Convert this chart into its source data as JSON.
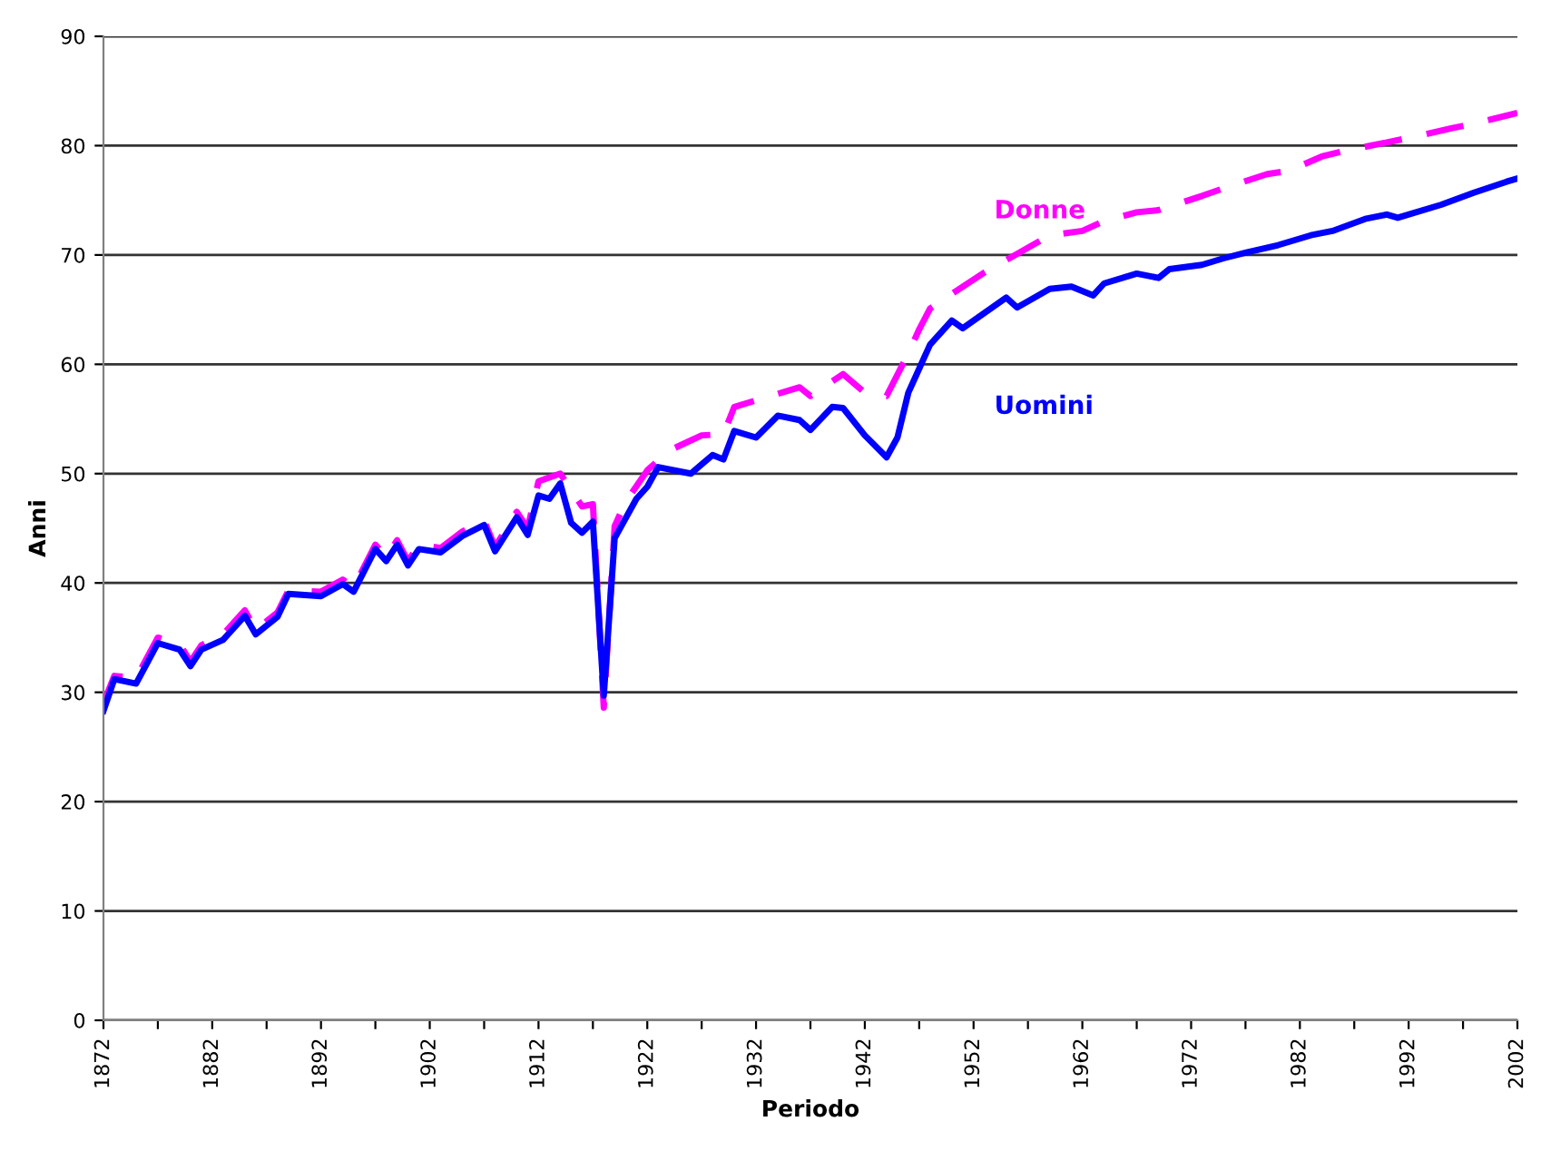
{
  "chart_data": {
    "type": "line",
    "xlabel": "Periodo",
    "ylabel": "Anni",
    "xlim": [
      1872,
      2002
    ],
    "ylim": [
      0,
      90
    ],
    "xticks": [
      1872,
      {
        "value": 1877,
        "label": null
      },
      1882,
      {
        "value": 1887,
        "label": null
      },
      1892,
      {
        "value": 1897,
        "label": null
      },
      1902,
      {
        "value": 1907,
        "label": null
      },
      1912,
      {
        "value": 1917,
        "label": null
      },
      1922,
      {
        "value": 1927,
        "label": null
      },
      1932,
      {
        "value": 1937,
        "label": null
      },
      1942,
      {
        "value": 1947,
        "label": null
      },
      1952,
      {
        "value": 1957,
        "label": null
      },
      1962,
      {
        "value": 1967,
        "label": null
      },
      1972,
      {
        "value": 1977,
        "label": null
      },
      1982,
      {
        "value": 1987,
        "label": null
      },
      1992,
      {
        "value": 1997,
        "label": null
      },
      2002
    ],
    "yticks": [
      0,
      10,
      20,
      30,
      40,
      50,
      60,
      70,
      80,
      90
    ],
    "grid": "y",
    "legend": false,
    "series": [
      {
        "name": "Donne",
        "color": "#ff00ff",
        "line_style": "dashed",
        "x": [
          1872,
          1873,
          1875,
          1877,
          1879,
          1880,
          1881,
          1883,
          1885,
          1886,
          1888,
          1889,
          1892,
          1894,
          1895,
          1897,
          1898,
          1899,
          1900,
          1901,
          1903,
          1905,
          1907,
          1908,
          1910,
          1911,
          1912,
          1914,
          1916,
          1917,
          1918,
          1919,
          1920,
          1922,
          1924,
          1927,
          1929,
          1930,
          1932,
          1936,
          1937,
          1940,
          1942,
          1944,
          1946,
          1947,
          1948,
          1951,
          1953,
          1956,
          1959,
          1962,
          1964,
          1967,
          1969,
          1973,
          1975,
          1979,
          1981,
          1984,
          1986,
          1990,
          1992,
          1996,
          1998,
          2002
        ],
        "values": [
          29.0,
          31.5,
          31.3,
          35.0,
          34.4,
          32.8,
          34.3,
          35.3,
          37.5,
          35.7,
          37.3,
          39.3,
          39.2,
          40.3,
          39.6,
          43.5,
          42.4,
          43.9,
          42.0,
          43.5,
          43.2,
          44.7,
          45.7,
          43.3,
          46.5,
          45.0,
          49.3,
          50.0,
          47.0,
          47.2,
          28.6,
          45.2,
          47.4,
          50.3,
          52.1,
          53.5,
          53.6,
          56.1,
          56.7,
          57.9,
          57.1,
          59.1,
          57.4,
          57.1,
          61.0,
          63.2,
          65.1,
          67.1,
          68.4,
          70.1,
          71.8,
          72.2,
          73.1,
          73.9,
          74.1,
          75.4,
          76.1,
          77.4,
          77.7,
          79.0,
          79.5,
          80.3,
          80.7,
          81.6,
          82.0,
          83.0
        ]
      },
      {
        "name": "Uomini",
        "color": "#0000ff",
        "line_style": "solid",
        "x": [
          1872,
          1873,
          1875,
          1877,
          1879,
          1880,
          1881,
          1883,
          1885,
          1886,
          1888,
          1889,
          1892,
          1894,
          1895,
          1897,
          1898,
          1899,
          1900,
          1901,
          1903,
          1905,
          1907,
          1908,
          1910,
          1911,
          1912,
          1913,
          1914,
          1915,
          1916,
          1917,
          1918,
          1919,
          1921,
          1922,
          1923,
          1926,
          1928,
          1929,
          1930,
          1932,
          1934,
          1936,
          1937,
          1939,
          1940,
          1942,
          1944,
          1945,
          1946,
          1948,
          1950,
          1951,
          1955,
          1956,
          1959,
          1961,
          1963,
          1964,
          1967,
          1969,
          1970,
          1973,
          1975,
          1977,
          1980,
          1983,
          1985,
          1988,
          1990,
          1991,
          1995,
          1998,
          2001,
          2002
        ],
        "values": [
          28.3,
          31.2,
          30.8,
          34.5,
          33.9,
          32.4,
          33.9,
          34.8,
          37.0,
          35.3,
          36.9,
          39.0,
          38.8,
          39.9,
          39.2,
          43.1,
          42.0,
          43.5,
          41.6,
          43.1,
          42.8,
          44.3,
          45.3,
          42.9,
          46.0,
          44.4,
          48.0,
          47.7,
          49.1,
          45.5,
          44.6,
          45.6,
          29.7,
          44.1,
          47.7,
          48.8,
          50.6,
          50.0,
          51.7,
          51.3,
          53.9,
          53.3,
          55.3,
          54.9,
          54.0,
          56.1,
          56.0,
          53.5,
          51.5,
          53.3,
          57.4,
          61.8,
          64.0,
          63.3,
          66.1,
          65.2,
          66.9,
          67.1,
          66.3,
          67.4,
          68.3,
          67.9,
          68.7,
          69.1,
          69.7,
          70.2,
          70.9,
          71.8,
          72.2,
          73.3,
          73.7,
          73.4,
          74.6,
          75.7,
          76.7,
          77.0
        ]
      }
    ]
  }
}
